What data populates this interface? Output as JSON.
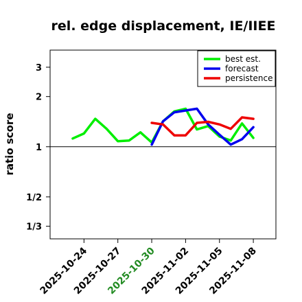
{
  "chart_data": {
    "type": "line",
    "title": "rel. edge displacement, IE/IIEE",
    "xlabel": "",
    "ylabel": "ratio score",
    "y_scale": "log",
    "ylim": [
      0.28,
      3.8
    ],
    "y_ticks": [
      {
        "value": 0.3333,
        "label": "1/3"
      },
      {
        "value": 0.5,
        "label": "1/2"
      },
      {
        "value": 1,
        "label": "1"
      },
      {
        "value": 2,
        "label": "2"
      },
      {
        "value": 3,
        "label": "3"
      }
    ],
    "reference_line": 1,
    "xlim": [
      "2025-10-21",
      "2025-11-10"
    ],
    "x_ticks": [
      {
        "date": "2025-10-24",
        "label": "2025-10-24",
        "color": "#000000"
      },
      {
        "date": "2025-10-27",
        "label": "2025-10-27",
        "color": "#000000"
      },
      {
        "date": "2025-10-30",
        "label": "2025-10-30",
        "color": "#228B22"
      },
      {
        "date": "2025-11-02",
        "label": "2025-11-02",
        "color": "#000000"
      },
      {
        "date": "2025-11-05",
        "label": "2025-11-05",
        "color": "#000000"
      },
      {
        "date": "2025-11-08",
        "label": "2025-11-08",
        "color": "#000000"
      }
    ],
    "legend_position": "top-right",
    "series": [
      {
        "name": "best est.",
        "color": "#00ee00",
        "points": [
          [
            "2025-10-23",
            1.12
          ],
          [
            "2025-10-24",
            1.2
          ],
          [
            "2025-10-25",
            1.47
          ],
          [
            "2025-10-26",
            1.28
          ],
          [
            "2025-10-27",
            1.08
          ],
          [
            "2025-10-28",
            1.09
          ],
          [
            "2025-10-29",
            1.22
          ],
          [
            "2025-10-30",
            1.06
          ],
          [
            "2025-10-31",
            1.42
          ],
          [
            "2025-11-01",
            1.63
          ],
          [
            "2025-11-02",
            1.69
          ],
          [
            "2025-11-03",
            1.27
          ],
          [
            "2025-11-04",
            1.33
          ],
          [
            "2025-11-05",
            1.15
          ],
          [
            "2025-11-06",
            1.09
          ],
          [
            "2025-11-07",
            1.38
          ],
          [
            "2025-11-08",
            1.13
          ]
        ]
      },
      {
        "name": "forecast",
        "color": "#0000ee",
        "points": [
          [
            "2025-10-30",
            1.03
          ],
          [
            "2025-10-31",
            1.42
          ],
          [
            "2025-11-01",
            1.61
          ],
          [
            "2025-11-02",
            1.65
          ],
          [
            "2025-11-03",
            1.69
          ],
          [
            "2025-11-04",
            1.36
          ],
          [
            "2025-11-05",
            1.18
          ],
          [
            "2025-11-06",
            1.03
          ],
          [
            "2025-11-07",
            1.11
          ],
          [
            "2025-11-08",
            1.31
          ]
        ]
      },
      {
        "name": "persistence",
        "color": "#ee0000",
        "points": [
          [
            "2025-10-30",
            1.39
          ],
          [
            "2025-10-31",
            1.36
          ],
          [
            "2025-11-01",
            1.17
          ],
          [
            "2025-11-02",
            1.17
          ],
          [
            "2025-11-03",
            1.39
          ],
          [
            "2025-11-04",
            1.41
          ],
          [
            "2025-11-05",
            1.36
          ],
          [
            "2025-11-06",
            1.28
          ],
          [
            "2025-11-07",
            1.5
          ],
          [
            "2025-11-08",
            1.47
          ]
        ]
      }
    ]
  }
}
